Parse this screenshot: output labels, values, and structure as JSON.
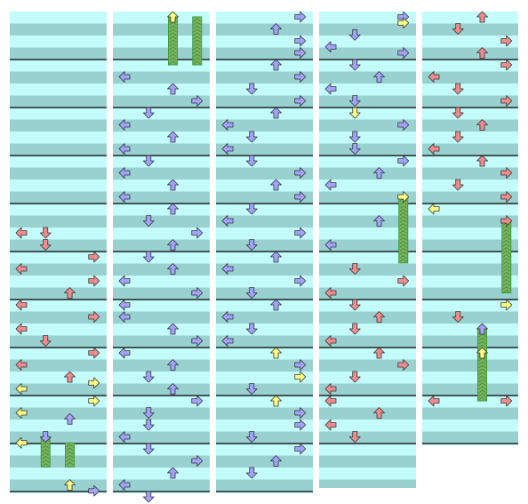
{
  "chart_data": {
    "type": "step-chart",
    "lanes": [
      "left",
      "down",
      "up",
      "right"
    ],
    "colors": {
      "background": "#ffffff",
      "stripe_light": "#c4fcfc",
      "stripe_dark": "#99d0d0",
      "measure_line": "#000000",
      "quarter": "#f28c8c",
      "eighth": "#a3a3ff",
      "twelfth": "#ffff80",
      "freeze": "#80b060",
      "freeze_stripe": "#3c9c3c"
    },
    "notes": {
      "col0": [
        {
          "beat": 18,
          "lane": "down",
          "type": "quarter"
        },
        {
          "beat": 18,
          "lane": "left",
          "type": "quarter"
        },
        {
          "beat": 19,
          "lane": "down",
          "type": "quarter"
        },
        {
          "beat": 20,
          "lane": "right",
          "type": "quarter"
        },
        {
          "beat": 21,
          "lane": "left",
          "type": "quarter"
        },
        {
          "beat": 22,
          "lane": "right",
          "type": "quarter"
        },
        {
          "beat": 23,
          "lane": "up",
          "type": "quarter"
        },
        {
          "beat": 24,
          "lane": "left",
          "type": "quarter"
        },
        {
          "beat": 25,
          "lane": "right",
          "type": "quarter"
        },
        {
          "beat": 26,
          "lane": "left",
          "type": "quarter"
        },
        {
          "beat": 27,
          "lane": "down",
          "type": "quarter"
        },
        {
          "beat": 28,
          "lane": "right",
          "type": "quarter"
        },
        {
          "beat": 29,
          "lane": "left",
          "type": "quarter"
        },
        {
          "beat": 30,
          "lane": "up",
          "type": "quarter"
        },
        {
          "beat": 30.5,
          "lane": "right",
          "type": "twelfth"
        },
        {
          "beat": 31,
          "lane": "left",
          "type": "twelfth"
        },
        {
          "beat": 32,
          "lane": "right",
          "type": "twelfth"
        },
        {
          "beat": 33,
          "lane": "left",
          "type": "twelfth"
        },
        {
          "beat": 33.5,
          "lane": "up",
          "type": "eighth"
        },
        {
          "beat": 35,
          "lane": "down",
          "type": "eighth",
          "freeze_end": 37.5
        },
        {
          "beat": 35.5,
          "lane": "left",
          "type": "twelfth"
        },
        {
          "beat": 35.5,
          "lane": "up",
          "type": "freeze",
          "freeze_end": 37.5
        },
        {
          "beat": 39,
          "lane": "up",
          "type": "twelfth"
        },
        {
          "beat": 39.5,
          "lane": "right",
          "type": "eighth"
        }
      ],
      "col1": [
        {
          "beat": 0,
          "lane": "up",
          "type": "twelfth",
          "freeze_end": 4
        },
        {
          "beat": 0,
          "lane": "right",
          "type": "freeze",
          "freeze_end": 4
        },
        {
          "beat": 5,
          "lane": "left",
          "type": "eighth"
        },
        {
          "beat": 6,
          "lane": "up",
          "type": "eighth"
        },
        {
          "beat": 7,
          "lane": "right",
          "type": "eighth"
        },
        {
          "beat": 8,
          "lane": "down",
          "type": "eighth"
        },
        {
          "beat": 9,
          "lane": "left",
          "type": "eighth"
        },
        {
          "beat": 10,
          "lane": "up",
          "type": "eighth"
        },
        {
          "beat": 11,
          "lane": "left",
          "type": "eighth"
        },
        {
          "beat": 12,
          "lane": "down",
          "type": "eighth"
        },
        {
          "beat": 13,
          "lane": "left",
          "type": "eighth"
        },
        {
          "beat": 14,
          "lane": "up",
          "type": "eighth"
        },
        {
          "beat": 15,
          "lane": "left",
          "type": "eighth"
        },
        {
          "beat": 16,
          "lane": "up",
          "type": "eighth"
        },
        {
          "beat": 17,
          "lane": "down",
          "type": "eighth"
        },
        {
          "beat": 18,
          "lane": "right",
          "type": "eighth"
        },
        {
          "beat": 19,
          "lane": "up",
          "type": "eighth"
        },
        {
          "beat": 20,
          "lane": "down",
          "type": "eighth"
        },
        {
          "beat": 21,
          "lane": "up",
          "type": "eighth"
        },
        {
          "beat": 22,
          "lane": "left",
          "type": "eighth"
        },
        {
          "beat": 23,
          "lane": "right",
          "type": "eighth"
        },
        {
          "beat": 24,
          "lane": "left",
          "type": "eighth"
        },
        {
          "beat": 25,
          "lane": "left",
          "type": "eighth"
        },
        {
          "beat": 26,
          "lane": "up",
          "type": "eighth"
        },
        {
          "beat": 27,
          "lane": "right",
          "type": "eighth"
        },
        {
          "beat": 28,
          "lane": "left",
          "type": "eighth"
        },
        {
          "beat": 29,
          "lane": "up",
          "type": "eighth"
        },
        {
          "beat": 30,
          "lane": "down",
          "type": "eighth"
        },
        {
          "beat": 31,
          "lane": "up",
          "type": "eighth"
        },
        {
          "beat": 32,
          "lane": "right",
          "type": "eighth"
        },
        {
          "beat": 33,
          "lane": "down",
          "type": "eighth"
        },
        {
          "beat": 34,
          "lane": "down",
          "type": "eighth"
        },
        {
          "beat": 35,
          "lane": "left",
          "type": "eighth"
        },
        {
          "beat": 36,
          "lane": "down",
          "type": "eighth"
        },
        {
          "beat": 37,
          "lane": "right",
          "type": "eighth"
        },
        {
          "beat": 38,
          "lane": "up",
          "type": "eighth"
        },
        {
          "beat": 39,
          "lane": "left",
          "type": "eighth"
        },
        {
          "beat": 40,
          "lane": "down",
          "type": "eighth"
        }
      ],
      "col2": [
        {
          "beat": 0,
          "lane": "right",
          "type": "eighth"
        },
        {
          "beat": 1,
          "lane": "up",
          "type": "eighth"
        },
        {
          "beat": 2,
          "lane": "right",
          "type": "eighth"
        },
        {
          "beat": 3,
          "lane": "right",
          "type": "eighth"
        },
        {
          "beat": 4,
          "lane": "up",
          "type": "eighth"
        },
        {
          "beat": 5,
          "lane": "right",
          "type": "eighth"
        },
        {
          "beat": 6,
          "lane": "down",
          "type": "eighth"
        },
        {
          "beat": 7,
          "lane": "right",
          "type": "eighth"
        },
        {
          "beat": 8,
          "lane": "up",
          "type": "eighth"
        },
        {
          "beat": 9,
          "lane": "left",
          "type": "eighth"
        },
        {
          "beat": 10,
          "lane": "down",
          "type": "eighth"
        },
        {
          "beat": 11,
          "lane": "left",
          "type": "eighth"
        },
        {
          "beat": 12,
          "lane": "down",
          "type": "eighth"
        },
        {
          "beat": 13,
          "lane": "right",
          "type": "eighth"
        },
        {
          "beat": 14,
          "lane": "up",
          "type": "eighth"
        },
        {
          "beat": 15,
          "lane": "right",
          "type": "eighth"
        },
        {
          "beat": 16,
          "lane": "down",
          "type": "eighth"
        },
        {
          "beat": 17,
          "lane": "left",
          "type": "eighth"
        },
        {
          "beat": 18,
          "lane": "right",
          "type": "eighth"
        },
        {
          "beat": 19,
          "lane": "down",
          "type": "eighth"
        },
        {
          "beat": 20,
          "lane": "up",
          "type": "eighth"
        },
        {
          "beat": 21,
          "lane": "left",
          "type": "eighth"
        },
        {
          "beat": 22,
          "lane": "right",
          "type": "eighth"
        },
        {
          "beat": 23,
          "lane": "down",
          "type": "eighth"
        },
        {
          "beat": 24,
          "lane": "up",
          "type": "eighth"
        },
        {
          "beat": 25,
          "lane": "left",
          "type": "eighth"
        },
        {
          "beat": 26,
          "lane": "down",
          "type": "eighth"
        },
        {
          "beat": 27,
          "lane": "left",
          "type": "eighth"
        },
        {
          "beat": 28,
          "lane": "up",
          "type": "twelfth"
        },
        {
          "beat": 29,
          "lane": "right",
          "type": "eighth"
        },
        {
          "beat": 30,
          "lane": "right",
          "type": "twelfth"
        },
        {
          "beat": 31,
          "lane": "down",
          "type": "eighth"
        },
        {
          "beat": 32,
          "lane": "up",
          "type": "twelfth"
        },
        {
          "beat": 33,
          "lane": "right",
          "type": "eighth"
        },
        {
          "beat": 34,
          "lane": "right",
          "type": "eighth"
        },
        {
          "beat": 35,
          "lane": "down",
          "type": "eighth"
        },
        {
          "beat": 36,
          "lane": "right",
          "type": "eighth"
        },
        {
          "beat": 37,
          "lane": "up",
          "type": "eighth"
        },
        {
          "beat": 38,
          "lane": "down",
          "type": "eighth"
        }
      ],
      "col3": [
        {
          "beat": 0,
          "lane": "right",
          "type": "eighth"
        },
        {
          "beat": 0.5,
          "lane": "right",
          "type": "twelfth"
        },
        {
          "beat": 1.5,
          "lane": "down",
          "type": "eighth"
        },
        {
          "beat": 2.5,
          "lane": "left",
          "type": "eighth"
        },
        {
          "beat": 3,
          "lane": "right",
          "type": "eighth"
        },
        {
          "beat": 4,
          "lane": "down",
          "type": "eighth"
        },
        {
          "beat": 5,
          "lane": "up",
          "type": "eighth"
        },
        {
          "beat": 6,
          "lane": "left",
          "type": "eighth"
        },
        {
          "beat": 7,
          "lane": "down",
          "type": "eighth"
        },
        {
          "beat": 8,
          "lane": "down",
          "type": "twelfth"
        },
        {
          "beat": 9,
          "lane": "right",
          "type": "eighth"
        },
        {
          "beat": 10,
          "lane": "down",
          "type": "eighth"
        },
        {
          "beat": 11,
          "lane": "down",
          "type": "eighth"
        },
        {
          "beat": 12,
          "lane": "right",
          "type": "eighth"
        },
        {
          "beat": 13,
          "lane": "up",
          "type": "eighth"
        },
        {
          "beat": 14,
          "lane": "left",
          "type": "eighth"
        },
        {
          "beat": 15,
          "lane": "right",
          "type": "twelfth",
          "freeze_end": 20.5
        },
        {
          "beat": 17,
          "lane": "up",
          "type": "eighth"
        },
        {
          "beat": 19,
          "lane": "left",
          "type": "eighth"
        },
        {
          "beat": 21,
          "lane": "down",
          "type": "quarter"
        },
        {
          "beat": 22,
          "lane": "right",
          "type": "quarter"
        },
        {
          "beat": 23,
          "lane": "left",
          "type": "quarter"
        },
        {
          "beat": 24,
          "lane": "down",
          "type": "quarter"
        },
        {
          "beat": 25,
          "lane": "up",
          "type": "quarter"
        },
        {
          "beat": 26,
          "lane": "down",
          "type": "quarter"
        },
        {
          "beat": 27,
          "lane": "left",
          "type": "quarter"
        },
        {
          "beat": 28,
          "lane": "up",
          "type": "quarter"
        },
        {
          "beat": 29,
          "lane": "right",
          "type": "quarter"
        },
        {
          "beat": 30,
          "lane": "down",
          "type": "quarter"
        },
        {
          "beat": 31,
          "lane": "left",
          "type": "quarter"
        },
        {
          "beat": 32,
          "lane": "left",
          "type": "quarter"
        },
        {
          "beat": 33,
          "lane": "up",
          "type": "quarter"
        },
        {
          "beat": 34,
          "lane": "left",
          "type": "quarter"
        },
        {
          "beat": 35,
          "lane": "down",
          "type": "quarter"
        }
      ],
      "col4": [
        {
          "beat": 0,
          "lane": "up",
          "type": "quarter"
        },
        {
          "beat": 1,
          "lane": "down",
          "type": "quarter"
        },
        {
          "beat": 2,
          "lane": "right",
          "type": "quarter"
        },
        {
          "beat": 3,
          "lane": "up",
          "type": "quarter"
        },
        {
          "beat": 4,
          "lane": "right",
          "type": "quarter"
        },
        {
          "beat": 5,
          "lane": "left",
          "type": "quarter"
        },
        {
          "beat": 6,
          "lane": "down",
          "type": "quarter"
        },
        {
          "beat": 7,
          "lane": "right",
          "type": "quarter"
        },
        {
          "beat": 8,
          "lane": "down",
          "type": "quarter"
        },
        {
          "beat": 9,
          "lane": "up",
          "type": "quarter"
        },
        {
          "beat": 10,
          "lane": "down",
          "type": "quarter"
        },
        {
          "beat": 11,
          "lane": "left",
          "type": "quarter"
        },
        {
          "beat": 12,
          "lane": "up",
          "type": "quarter"
        },
        {
          "beat": 13,
          "lane": "right",
          "type": "quarter"
        },
        {
          "beat": 14,
          "lane": "down",
          "type": "quarter"
        },
        {
          "beat": 15,
          "lane": "right",
          "type": "quarter"
        },
        {
          "beat": 16,
          "lane": "left",
          "type": "twelfth"
        },
        {
          "beat": 17,
          "lane": "right",
          "type": "quarter",
          "freeze_end": 23
        },
        {
          "beat": 24,
          "lane": "right",
          "type": "twelfth"
        },
        {
          "beat": 25,
          "lane": "down",
          "type": "quarter"
        },
        {
          "beat": 26,
          "lane": "up",
          "type": "eighth",
          "freeze_end": 32
        },
        {
          "beat": 28,
          "lane": "up",
          "type": "twelfth",
          "freeze_end": 32
        },
        {
          "beat": 32,
          "lane": "right",
          "type": "quarter"
        },
        {
          "beat": 32,
          "lane": "left",
          "type": "quarter"
        }
      ]
    }
  }
}
